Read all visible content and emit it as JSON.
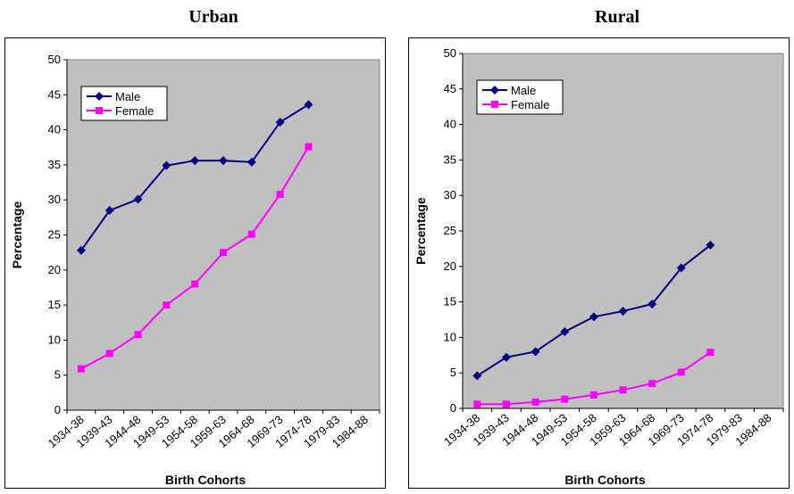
{
  "chart_data": [
    {
      "type": "line",
      "title": "Urban",
      "xlabel": "Birth Cohorts",
      "ylabel": "Percentage",
      "ylim": [
        0,
        50
      ],
      "yticks": [
        0,
        5,
        10,
        15,
        20,
        25,
        30,
        35,
        40,
        45,
        50
      ],
      "categories": [
        "1934-38",
        "1939-43",
        "1944-48",
        "1949-53",
        "1954-58",
        "1959-63",
        "1964-68",
        "1969-73",
        "1974-78",
        "1979-83",
        "1984-88"
      ],
      "series": [
        {
          "name": "Male",
          "color": "#00007f",
          "marker": "diamond",
          "values": [
            22.8,
            28.5,
            30.1,
            34.9,
            35.6,
            35.6,
            35.4,
            41.1,
            43.6,
            null,
            null
          ]
        },
        {
          "name": "Female",
          "color": "#ff00ff",
          "marker": "square",
          "values": [
            5.9,
            8.1,
            10.8,
            15.0,
            18.0,
            22.5,
            25.1,
            30.8,
            37.6,
            null,
            null
          ]
        }
      ],
      "legend": "upper-left",
      "grid": false,
      "background": "#c0c0c0"
    },
    {
      "type": "line",
      "title": "Rural",
      "xlabel": "Birth Cohorts",
      "ylabel": "Percentage",
      "ylim": [
        0,
        50
      ],
      "yticks": [
        0,
        5,
        10,
        15,
        20,
        25,
        30,
        35,
        40,
        45,
        50
      ],
      "categories": [
        "1934-38",
        "1939-43",
        "1944-48",
        "1949-53",
        "1954-58",
        "1959-63",
        "1964-68",
        "1969-73",
        "1974-78",
        "1979-83",
        "1984-88"
      ],
      "series": [
        {
          "name": "Male",
          "color": "#00007f",
          "marker": "diamond",
          "values": [
            4.6,
            7.2,
            8.0,
            10.8,
            12.9,
            13.7,
            14.7,
            19.8,
            23.0,
            null,
            null
          ]
        },
        {
          "name": "Female",
          "color": "#ff00ff",
          "marker": "square",
          "values": [
            0.6,
            0.6,
            0.9,
            1.3,
            1.9,
            2.6,
            3.5,
            5.1,
            7.9,
            null,
            null
          ]
        }
      ],
      "legend": "upper-left",
      "grid": false,
      "background": "#c0c0c0"
    }
  ]
}
